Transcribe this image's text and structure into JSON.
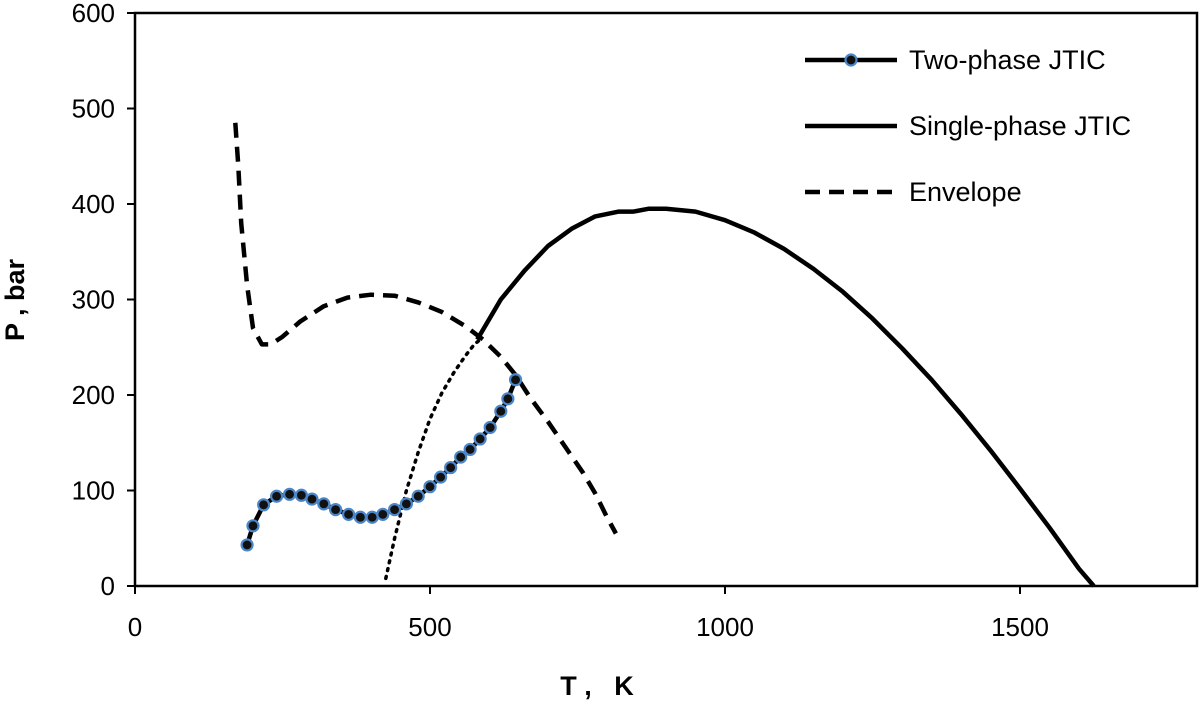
{
  "chart_data": {
    "type": "line",
    "xlabel": "T ,   K",
    "ylabel": "P , bar",
    "xlim": [
      0,
      1800
    ],
    "ylim": [
      0,
      600
    ],
    "x_ticks": [
      0,
      500,
      1000,
      1500
    ],
    "y_ticks": [
      0,
      100,
      200,
      300,
      400,
      500,
      600
    ],
    "grid": false,
    "legend_position": "top-right",
    "series": [
      {
        "name": "Two-phase JTIC",
        "style": "solid-markers",
        "color": "#000000",
        "marker_color": "#4a86c8",
        "points": [
          [
            190,
            43
          ],
          [
            200,
            63
          ],
          [
            218,
            85
          ],
          [
            240,
            94
          ],
          [
            262,
            96
          ],
          [
            282,
            95
          ],
          [
            300,
            91
          ],
          [
            320,
            86
          ],
          [
            340,
            80
          ],
          [
            362,
            75
          ],
          [
            382,
            72
          ],
          [
            402,
            72
          ],
          [
            420,
            75
          ],
          [
            440,
            80
          ],
          [
            460,
            86
          ],
          [
            480,
            94
          ],
          [
            500,
            104
          ],
          [
            518,
            114
          ],
          [
            535,
            124
          ],
          [
            552,
            135
          ],
          [
            568,
            143
          ],
          [
            585,
            154
          ],
          [
            602,
            166
          ],
          [
            620,
            183
          ],
          [
            632,
            196
          ],
          [
            645,
            216
          ]
        ]
      },
      {
        "name": "Single-phase JTIC",
        "style": "solid",
        "color": "#000000",
        "points": [
          [
            580,
            258
          ],
          [
            620,
            300
          ],
          [
            660,
            330
          ],
          [
            700,
            356
          ],
          [
            740,
            374
          ],
          [
            780,
            387
          ],
          [
            820,
            392
          ],
          [
            845,
            392
          ],
          [
            870,
            395
          ],
          [
            900,
            395
          ],
          [
            950,
            392
          ],
          [
            1000,
            383
          ],
          [
            1050,
            370
          ],
          [
            1100,
            353
          ],
          [
            1150,
            332
          ],
          [
            1200,
            308
          ],
          [
            1250,
            280
          ],
          [
            1300,
            249
          ],
          [
            1350,
            216
          ],
          [
            1400,
            180
          ],
          [
            1450,
            142
          ],
          [
            1500,
            102
          ],
          [
            1550,
            61
          ],
          [
            1600,
            18
          ],
          [
            1625,
            0
          ]
        ]
      },
      {
        "name": "Envelope",
        "style": "dashed",
        "color": "#000000",
        "points": [
          [
            170,
            485
          ],
          [
            175,
            440
          ],
          [
            180,
            380
          ],
          [
            190,
            315
          ],
          [
            200,
            270
          ],
          [
            215,
            253
          ],
          [
            230,
            253
          ],
          [
            250,
            261
          ],
          [
            280,
            277
          ],
          [
            320,
            293
          ],
          [
            360,
            302
          ],
          [
            400,
            305
          ],
          [
            440,
            304
          ],
          [
            480,
            297
          ],
          [
            520,
            287
          ],
          [
            560,
            272
          ],
          [
            590,
            258
          ],
          [
            620,
            240
          ],
          [
            645,
            221
          ],
          [
            670,
            197
          ],
          [
            700,
            172
          ],
          [
            730,
            145
          ],
          [
            760,
            118
          ],
          [
            780,
            97
          ],
          [
            800,
            72
          ],
          [
            815,
            55
          ]
        ]
      },
      {
        "name": "",
        "style": "dotted",
        "color": "#000000",
        "points": [
          [
            425,
            8
          ],
          [
            440,
            50
          ],
          [
            460,
            100
          ],
          [
            480,
            140
          ],
          [
            500,
            175
          ],
          [
            520,
            202
          ],
          [
            540,
            223
          ],
          [
            560,
            241
          ],
          [
            575,
            253
          ],
          [
            585,
            258
          ]
        ]
      }
    ]
  }
}
